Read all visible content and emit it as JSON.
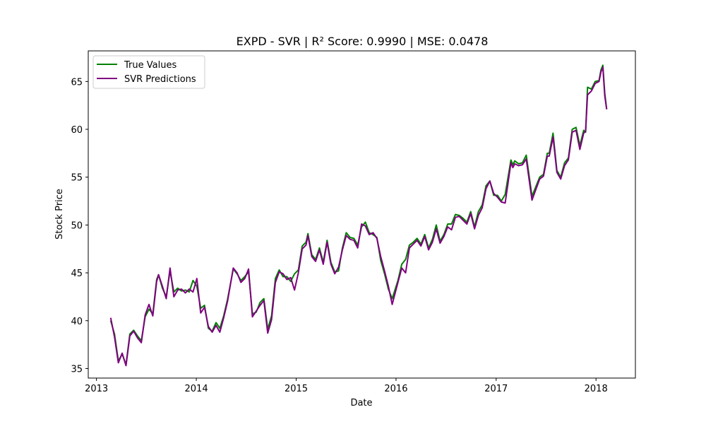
{
  "chart_data": {
    "type": "line",
    "title": "EXPD - SVR | R² Score: 0.9990 | MSE: 0.0478",
    "xlabel": "Date",
    "ylabel": "Stock Price",
    "x_ticks": [
      "2013",
      "2014",
      "2015",
      "2016",
      "2017",
      "2018"
    ],
    "y_ticks": [
      35,
      40,
      45,
      50,
      55,
      60,
      65
    ],
    "xlim": [
      "2012-12-02",
      "2018-05-25"
    ],
    "ylim": [
      34.0,
      68.2
    ],
    "grid": false,
    "legend_position": "top-left",
    "series": [
      {
        "name": "True Values",
        "color": "#008000",
        "points": [
          [
            "2013-02-22",
            40.0
          ],
          [
            "2013-03-08",
            38.6
          ],
          [
            "2013-03-22",
            35.8
          ],
          [
            "2013-04-05",
            36.5
          ],
          [
            "2013-04-19",
            35.4
          ],
          [
            "2013-05-03",
            38.6
          ],
          [
            "2013-05-17",
            39.0
          ],
          [
            "2013-05-31",
            38.4
          ],
          [
            "2013-06-14",
            37.9
          ],
          [
            "2013-06-28",
            40.4
          ],
          [
            "2013-07-12",
            41.2
          ],
          [
            "2013-07-26",
            40.7
          ],
          [
            "2013-08-09",
            44.3
          ],
          [
            "2013-08-16",
            44.8
          ],
          [
            "2013-08-30",
            43.4
          ],
          [
            "2013-09-13",
            42.5
          ],
          [
            "2013-09-27",
            45.2
          ],
          [
            "2013-10-11",
            43.0
          ],
          [
            "2013-10-25",
            43.4
          ],
          [
            "2013-11-08",
            43.1
          ],
          [
            "2013-11-22",
            43.2
          ],
          [
            "2013-12-06",
            43.0
          ],
          [
            "2013-12-20",
            44.2
          ],
          [
            "2014-01-03",
            43.6
          ],
          [
            "2014-01-17",
            41.3
          ],
          [
            "2014-01-31",
            41.6
          ],
          [
            "2014-02-14",
            39.2
          ],
          [
            "2014-02-28",
            38.9
          ],
          [
            "2014-03-14",
            39.8
          ],
          [
            "2014-03-28",
            39.2
          ],
          [
            "2014-04-11",
            40.5
          ],
          [
            "2014-04-25",
            42.2
          ],
          [
            "2014-05-16",
            45.4
          ],
          [
            "2014-05-30",
            44.9
          ],
          [
            "2014-06-13",
            44.2
          ],
          [
            "2014-06-27",
            44.6
          ],
          [
            "2014-07-11",
            45.1
          ],
          [
            "2014-07-25",
            40.7
          ],
          [
            "2014-08-08",
            40.9
          ],
          [
            "2014-08-22",
            41.9
          ],
          [
            "2014-09-05",
            42.3
          ],
          [
            "2014-09-19",
            39.1
          ],
          [
            "2014-10-03",
            40.5
          ],
          [
            "2014-10-17",
            44.4
          ],
          [
            "2014-10-31",
            45.3
          ],
          [
            "2014-11-14",
            44.6
          ],
          [
            "2014-11-28",
            44.6
          ],
          [
            "2014-12-12",
            44.1
          ],
          [
            "2014-12-26",
            44.9
          ],
          [
            "2015-01-09",
            45.3
          ],
          [
            "2015-01-23",
            47.8
          ],
          [
            "2015-02-06",
            48.2
          ],
          [
            "2015-02-13",
            49.1
          ],
          [
            "2015-02-27",
            46.9
          ],
          [
            "2015-03-13",
            46.4
          ],
          [
            "2015-03-27",
            47.6
          ],
          [
            "2015-04-10",
            46.1
          ],
          [
            "2015-04-24",
            48.4
          ],
          [
            "2015-05-08",
            46.1
          ],
          [
            "2015-05-22",
            45.1
          ],
          [
            "2015-06-05",
            45.2
          ],
          [
            "2015-06-19",
            47.6
          ],
          [
            "2015-07-03",
            49.2
          ],
          [
            "2015-07-17",
            48.7
          ],
          [
            "2015-07-31",
            48.6
          ],
          [
            "2015-08-14",
            47.9
          ],
          [
            "2015-08-28",
            49.8
          ],
          [
            "2015-09-11",
            50.3
          ],
          [
            "2015-09-25",
            49.2
          ],
          [
            "2015-10-09",
            49.0
          ],
          [
            "2015-10-23",
            48.7
          ],
          [
            "2015-11-06",
            46.3
          ],
          [
            "2015-11-20",
            44.9
          ],
          [
            "2015-12-04",
            43.3
          ],
          [
            "2015-12-18",
            42.3
          ],
          [
            "2016-01-08",
            44.2
          ],
          [
            "2016-01-22",
            45.9
          ],
          [
            "2016-02-05",
            46.4
          ],
          [
            "2016-02-19",
            47.9
          ],
          [
            "2016-03-04",
            48.2
          ],
          [
            "2016-03-18",
            48.6
          ],
          [
            "2016-04-01",
            48.0
          ],
          [
            "2016-04-15",
            49.0
          ],
          [
            "2016-04-29",
            47.6
          ],
          [
            "2016-05-13",
            48.5
          ],
          [
            "2016-05-27",
            50.0
          ],
          [
            "2016-06-10",
            48.3
          ],
          [
            "2016-06-24",
            49.0
          ],
          [
            "2016-07-08",
            50.1
          ],
          [
            "2016-07-22",
            50.1
          ],
          [
            "2016-08-05",
            51.1
          ],
          [
            "2016-08-19",
            51.0
          ],
          [
            "2016-09-02",
            50.7
          ],
          [
            "2016-09-16",
            50.3
          ],
          [
            "2016-09-30",
            51.4
          ],
          [
            "2016-10-14",
            49.8
          ],
          [
            "2016-10-28",
            51.4
          ],
          [
            "2016-11-11",
            52.1
          ],
          [
            "2016-11-25",
            54.1
          ],
          [
            "2016-12-09",
            54.6
          ],
          [
            "2016-12-23",
            53.1
          ],
          [
            "2017-01-06",
            53.1
          ],
          [
            "2017-01-20",
            52.5
          ],
          [
            "2017-02-03",
            53.2
          ],
          [
            "2017-02-24",
            56.8
          ],
          [
            "2017-03-03",
            56.3
          ],
          [
            "2017-03-10",
            56.7
          ],
          [
            "2017-03-24",
            56.4
          ],
          [
            "2017-04-07",
            56.5
          ],
          [
            "2017-04-21",
            57.3
          ],
          [
            "2017-05-12",
            53.0
          ],
          [
            "2017-05-26",
            54.0
          ],
          [
            "2017-06-09",
            55.0
          ],
          [
            "2017-06-23",
            55.3
          ],
          [
            "2017-07-07",
            57.5
          ],
          [
            "2017-07-14",
            57.5
          ],
          [
            "2017-07-28",
            59.6
          ],
          [
            "2017-08-11",
            55.7
          ],
          [
            "2017-08-25",
            55.0
          ],
          [
            "2017-09-08",
            56.5
          ],
          [
            "2017-09-22",
            57.0
          ],
          [
            "2017-10-06",
            60.0
          ],
          [
            "2017-10-20",
            60.2
          ],
          [
            "2017-11-03",
            58.3
          ],
          [
            "2017-11-17",
            59.9
          ],
          [
            "2017-11-24",
            59.7
          ],
          [
            "2017-12-01",
            64.4
          ],
          [
            "2017-12-15",
            64.2
          ],
          [
            "2017-12-29",
            65.0
          ],
          [
            "2018-01-12",
            65.1
          ],
          [
            "2018-01-19",
            66.2
          ],
          [
            "2018-01-26",
            66.7
          ],
          [
            "2018-02-02",
            63.8
          ],
          [
            "2018-02-09",
            62.1
          ]
        ]
      },
      {
        "name": "SVR Predictions",
        "color": "#800080",
        "points": [
          [
            "2013-02-22",
            40.3
          ],
          [
            "2013-03-08",
            38.3
          ],
          [
            "2013-03-22",
            35.6
          ],
          [
            "2013-04-05",
            36.6
          ],
          [
            "2013-04-19",
            35.3
          ],
          [
            "2013-05-03",
            38.4
          ],
          [
            "2013-05-17",
            38.9
          ],
          [
            "2013-05-31",
            38.2
          ],
          [
            "2013-06-14",
            37.7
          ],
          [
            "2013-06-28",
            40.6
          ],
          [
            "2013-07-12",
            41.7
          ],
          [
            "2013-07-26",
            40.5
          ],
          [
            "2013-08-09",
            44.1
          ],
          [
            "2013-08-16",
            44.8
          ],
          [
            "2013-08-30",
            43.6
          ],
          [
            "2013-09-13",
            42.3
          ],
          [
            "2013-09-27",
            45.5
          ],
          [
            "2013-10-11",
            42.5
          ],
          [
            "2013-10-25",
            43.2
          ],
          [
            "2013-11-08",
            43.3
          ],
          [
            "2013-11-22",
            42.9
          ],
          [
            "2013-12-06",
            43.3
          ],
          [
            "2013-12-20",
            43.0
          ],
          [
            "2014-01-03",
            44.4
          ],
          [
            "2014-01-17",
            40.8
          ],
          [
            "2014-01-31",
            41.4
          ],
          [
            "2014-02-14",
            39.4
          ],
          [
            "2014-02-28",
            38.8
          ],
          [
            "2014-03-14",
            39.5
          ],
          [
            "2014-03-28",
            38.8
          ],
          [
            "2014-04-11",
            40.3
          ],
          [
            "2014-04-25",
            42.0
          ],
          [
            "2014-05-16",
            45.5
          ],
          [
            "2014-05-30",
            45.0
          ],
          [
            "2014-06-13",
            44.0
          ],
          [
            "2014-06-27",
            44.4
          ],
          [
            "2014-07-11",
            45.4
          ],
          [
            "2014-07-25",
            40.4
          ],
          [
            "2014-08-08",
            41.0
          ],
          [
            "2014-08-22",
            41.6
          ],
          [
            "2014-09-05",
            42.1
          ],
          [
            "2014-09-19",
            38.7
          ],
          [
            "2014-10-03",
            40.1
          ],
          [
            "2014-10-17",
            44.0
          ],
          [
            "2014-10-31",
            45.1
          ],
          [
            "2014-11-14",
            44.9
          ],
          [
            "2014-11-28",
            44.3
          ],
          [
            "2014-12-12",
            44.5
          ],
          [
            "2014-12-26",
            43.2
          ],
          [
            "2015-01-09",
            45.0
          ],
          [
            "2015-01-23",
            47.5
          ],
          [
            "2015-02-06",
            47.9
          ],
          [
            "2015-02-13",
            48.9
          ],
          [
            "2015-02-27",
            46.7
          ],
          [
            "2015-03-13",
            46.2
          ],
          [
            "2015-03-27",
            47.4
          ],
          [
            "2015-04-10",
            45.9
          ],
          [
            "2015-04-24",
            48.2
          ],
          [
            "2015-05-08",
            45.9
          ],
          [
            "2015-05-22",
            44.9
          ],
          [
            "2015-06-05",
            45.6
          ],
          [
            "2015-06-19",
            47.4
          ],
          [
            "2015-07-03",
            48.9
          ],
          [
            "2015-07-17",
            48.5
          ],
          [
            "2015-07-31",
            48.4
          ],
          [
            "2015-08-14",
            47.6
          ],
          [
            "2015-08-28",
            50.1
          ],
          [
            "2015-09-11",
            49.9
          ],
          [
            "2015-09-25",
            49.0
          ],
          [
            "2015-10-09",
            49.2
          ],
          [
            "2015-10-23",
            48.6
          ],
          [
            "2015-11-06",
            46.7
          ],
          [
            "2015-11-20",
            45.2
          ],
          [
            "2015-12-04",
            43.6
          ],
          [
            "2015-12-18",
            41.7
          ],
          [
            "2016-01-08",
            44.0
          ],
          [
            "2016-01-22",
            45.5
          ],
          [
            "2016-02-05",
            45.0
          ],
          [
            "2016-02-19",
            47.6
          ],
          [
            "2016-03-04",
            48.0
          ],
          [
            "2016-03-18",
            48.4
          ],
          [
            "2016-04-01",
            47.8
          ],
          [
            "2016-04-15",
            48.8
          ],
          [
            "2016-04-29",
            47.4
          ],
          [
            "2016-05-13",
            48.2
          ],
          [
            "2016-05-27",
            49.6
          ],
          [
            "2016-06-10",
            48.1
          ],
          [
            "2016-06-24",
            48.8
          ],
          [
            "2016-07-08",
            49.8
          ],
          [
            "2016-07-22",
            49.5
          ],
          [
            "2016-08-05",
            50.8
          ],
          [
            "2016-08-19",
            50.9
          ],
          [
            "2016-09-02",
            50.5
          ],
          [
            "2016-09-16",
            50.1
          ],
          [
            "2016-09-30",
            51.2
          ],
          [
            "2016-10-14",
            49.6
          ],
          [
            "2016-10-28",
            51.0
          ],
          [
            "2016-11-11",
            51.8
          ],
          [
            "2016-11-25",
            53.8
          ],
          [
            "2016-12-09",
            54.6
          ],
          [
            "2016-12-23",
            53.3
          ],
          [
            "2017-01-06",
            52.9
          ],
          [
            "2017-01-20",
            52.4
          ],
          [
            "2017-02-03",
            52.3
          ],
          [
            "2017-02-24",
            56.5
          ],
          [
            "2017-03-03",
            56.0
          ],
          [
            "2017-03-10",
            56.4
          ],
          [
            "2017-03-24",
            56.2
          ],
          [
            "2017-04-07",
            56.3
          ],
          [
            "2017-04-21",
            56.9
          ],
          [
            "2017-05-12",
            52.6
          ],
          [
            "2017-05-26",
            53.7
          ],
          [
            "2017-06-09",
            54.8
          ],
          [
            "2017-06-23",
            55.1
          ],
          [
            "2017-07-07",
            57.2
          ],
          [
            "2017-07-14",
            57.2
          ],
          [
            "2017-07-28",
            59.2
          ],
          [
            "2017-08-11",
            55.5
          ],
          [
            "2017-08-25",
            54.8
          ],
          [
            "2017-09-08",
            56.2
          ],
          [
            "2017-09-22",
            56.8
          ],
          [
            "2017-10-06",
            59.7
          ],
          [
            "2017-10-20",
            59.9
          ],
          [
            "2017-11-03",
            57.9
          ],
          [
            "2017-11-17",
            59.6
          ],
          [
            "2017-11-24",
            59.8
          ],
          [
            "2017-12-01",
            63.6
          ],
          [
            "2017-12-15",
            64.0
          ],
          [
            "2017-12-29",
            64.8
          ],
          [
            "2018-01-12",
            65.0
          ],
          [
            "2018-01-19",
            66.0
          ],
          [
            "2018-01-26",
            66.5
          ],
          [
            "2018-02-02",
            63.5
          ],
          [
            "2018-02-09",
            62.1
          ]
        ]
      }
    ]
  }
}
